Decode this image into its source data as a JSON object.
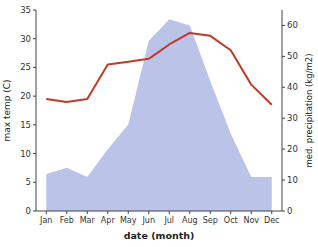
{
  "chart_data": {
    "type": "line",
    "xlabel": "date (month)",
    "ylabel": "max temp (C)",
    "y2label": "med. precipitation (kg/m2)",
    "categories": [
      "Jan",
      "Feb",
      "Mar",
      "Apr",
      "May",
      "Jun",
      "Jul",
      "Aug",
      "Sep",
      "Oct",
      "Nov",
      "Dec"
    ],
    "series": [
      {
        "type": "area",
        "axis": "y2",
        "color": "#bbc4e8",
        "values": [
          12,
          14,
          11,
          20,
          28,
          55,
          62,
          60,
          42,
          25,
          11,
          11
        ]
      },
      {
        "type": "line",
        "color": "#c0392b",
        "values": [
          19.5,
          19.0,
          19.5,
          25.5,
          26.0,
          26.5,
          29.0,
          31.0,
          30.5,
          28.0,
          22.0,
          18.5
        ]
      }
    ],
    "ylim": [
      0,
      35
    ],
    "yticks": [
      0,
      5,
      10,
      15,
      20,
      25,
      30,
      35
    ],
    "y2lim": [
      0,
      65
    ],
    "y2ticks": [
      0,
      10,
      20,
      30,
      40,
      50,
      60
    ],
    "grid": false
  }
}
